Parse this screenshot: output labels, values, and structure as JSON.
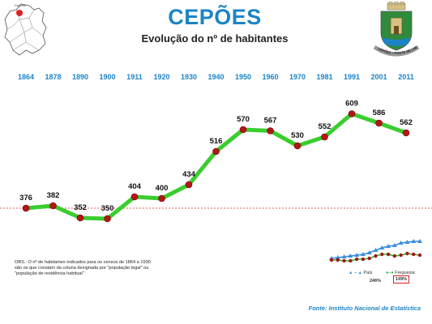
{
  "header": {
    "title": "CEPÕES",
    "subtitle": "Evolução do nº de habitantes"
  },
  "map": {
    "label": "Cepões",
    "highlight_color": "#e02020"
  },
  "coat_of_arms": {
    "motto": "CEPÕES • PONTE DE LIMA"
  },
  "chart_data": {
    "type": "line",
    "title": "Evolução do nº de habitantes",
    "categories": [
      "1864",
      "1878",
      "1890",
      "1900",
      "1911",
      "1920",
      "1930",
      "1940",
      "1950",
      "1960",
      "1970",
      "1981",
      "1991",
      "2001",
      "2011"
    ],
    "series": [
      {
        "values": [
          376,
          382,
          352,
          350,
          404,
          400,
          434,
          516,
          570,
          567,
          530,
          552,
          609,
          586,
          562
        ],
        "line_color": "#3acd2e",
        "marker_color": "#b01818"
      }
    ],
    "reference_line": {
      "value": 376,
      "style": "dashed",
      "color": "#e02020"
    },
    "ylim": [
      200,
      700
    ],
    "grid": false
  },
  "mini_chart": {
    "legend_pais": "País",
    "legend_freguesia": "Freguesia",
    "pct_pais": "246%",
    "pct_freguesia": "149%",
    "pais_color": "#3a8ee0",
    "freguesia_color": "#2db42d"
  },
  "note": "OBS.: O nº de habitantes indicados para os censos de 1864 a 1930 são os que constam da coluna designada por \"população legal\" ou \"população de residência habitual\"",
  "source": "Fonte: Instituto Nacional de Estatística"
}
